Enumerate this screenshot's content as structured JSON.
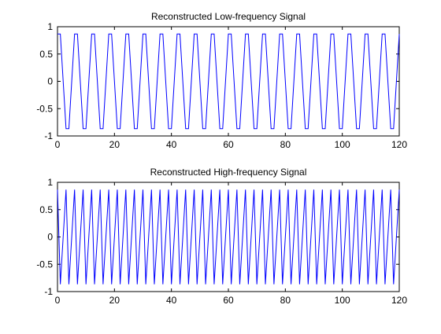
{
  "chart_data": [
    {
      "type": "line",
      "title": "Reconstructed Low-frequency Signal",
      "xlabel": "",
      "ylabel": "",
      "xlim": [
        0,
        120
      ],
      "ylim": [
        -1,
        1
      ],
      "xticks": [
        0,
        20,
        40,
        60,
        80,
        100,
        120
      ],
      "yticks": [
        -1,
        -0.5,
        0,
        0.5,
        1
      ],
      "xtick_labels": [
        "0",
        "20",
        "40",
        "60",
        "80",
        "100",
        "120"
      ],
      "ytick_labels": [
        "-1",
        "-0.5",
        "0",
        "0.5",
        "1"
      ],
      "grid": false,
      "legend": "none",
      "line_color": "#0000ff",
      "series": [
        {
          "x_start": 0,
          "x_end": 120,
          "x_step": 1,
          "period": 6,
          "pattern": [
            0.866,
            0.866,
            0,
            -0.866,
            -0.866,
            0
          ]
        }
      ]
    },
    {
      "type": "line",
      "title": "Reconstructed High-frequency Signal",
      "xlabel": "",
      "ylabel": "",
      "xlim": [
        0,
        120
      ],
      "ylim": [
        -1,
        1
      ],
      "xticks": [
        0,
        20,
        40,
        60,
        80,
        100,
        120
      ],
      "yticks": [
        -1,
        -0.5,
        0,
        0.5,
        1
      ],
      "xtick_labels": [
        "0",
        "20",
        "40",
        "60",
        "80",
        "100",
        "120"
      ],
      "ytick_labels": [
        "-1",
        "-0.5",
        "0",
        "0.5",
        "1"
      ],
      "grid": false,
      "legend": "none",
      "line_color": "#0000ff",
      "series": [
        {
          "x_start": 0,
          "x_end": 120,
          "x_step": 1,
          "period": 3,
          "pattern": [
            0.866,
            -0.866,
            0
          ]
        }
      ]
    }
  ]
}
